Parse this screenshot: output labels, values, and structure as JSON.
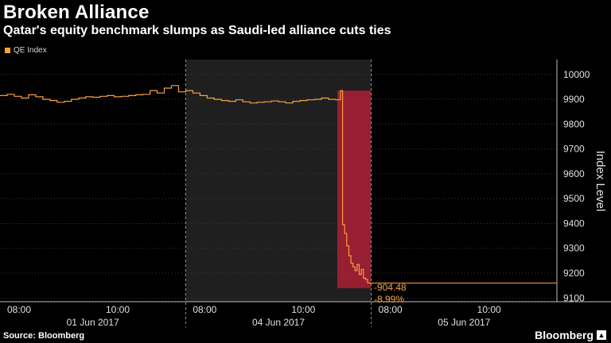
{
  "header": {
    "title": "Broken Alliance",
    "subtitle": "Qatar's equity benchmark slumps as Saudi-led alliance cuts ties"
  },
  "legend": {
    "label": "QE Index"
  },
  "footer": {
    "source": "Source: Bloomberg",
    "brand": "Bloomberg"
  },
  "colors": {
    "series": "#f5a040",
    "highlight": "#c0203a",
    "shade": "#1f1f1f",
    "grid": "#3a3a3a"
  },
  "chart_data": {
    "type": "line",
    "ylabel": "Index Level",
    "ylim": [
      9085,
      10060
    ],
    "yticks": [
      9100,
      9200,
      9300,
      9400,
      9500,
      9600,
      9700,
      9800,
      9900,
      10000
    ],
    "sessions": [
      {
        "day": "01 Jun 2017",
        "times": [
          "08:00",
          "10:00"
        ],
        "shaded": false
      },
      {
        "day": "04 Jun 2017",
        "times": [
          "08:00",
          "10:00"
        ],
        "shaded": true
      },
      {
        "day": "05 Jun 2017",
        "times": [
          "08:00",
          "10:00"
        ],
        "shaded": false
      }
    ],
    "series": [
      {
        "name": "QE Index",
        "values": [
          9915,
          9920,
          9912,
          9905,
          9918,
          9910,
          9900,
          9895,
          9888,
          9892,
          9900,
          9905,
          9910,
          9908,
          9912,
          9915,
          9910,
          9912,
          9915,
          9918,
          9920,
          9935,
          9925,
          9945,
          9955,
          9930,
          9935,
          9925,
          9915,
          9905,
          9900,
          9895,
          9892,
          9898,
          9890,
          9885,
          9888,
          9890,
          9893,
          9890,
          9885,
          9892,
          9895,
          9898,
          9900,
          9905,
          9900,
          9898,
          9935,
          9395,
          9360,
          9310,
          9270,
          9240,
          9225,
          9210,
          9235,
          9195,
          9215,
          9180,
          9175,
          9160
        ]
      }
    ],
    "annotations": {
      "change_points": "-904.48",
      "change_pct": "-8.99%"
    }
  }
}
